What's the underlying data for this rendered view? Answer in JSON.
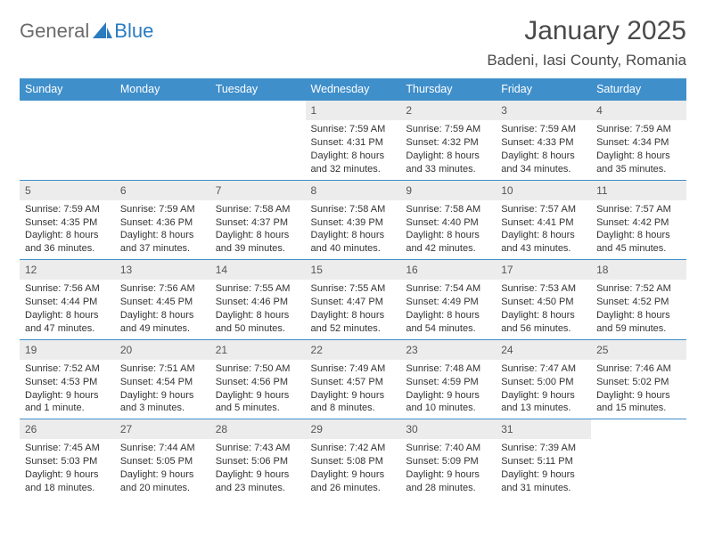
{
  "logo": {
    "general": "General",
    "blue": "Blue"
  },
  "title": "January 2025",
  "location": "Badeni, Iasi County, Romania",
  "colors": {
    "header_bg": "#3f8fcb",
    "header_text": "#ffffff",
    "daynum_bg": "#ececec",
    "row_border": "#3f8fcb",
    "logo_gray": "#6b6b6b",
    "logo_blue": "#2a7bbf"
  },
  "day_headers": [
    "Sunday",
    "Monday",
    "Tuesday",
    "Wednesday",
    "Thursday",
    "Friday",
    "Saturday"
  ],
  "weeks": [
    [
      {
        "n": "",
        "sr": "",
        "ss": "",
        "dl": ""
      },
      {
        "n": "",
        "sr": "",
        "ss": "",
        "dl": ""
      },
      {
        "n": "",
        "sr": "",
        "ss": "",
        "dl": ""
      },
      {
        "n": "1",
        "sr": "Sunrise: 7:59 AM",
        "ss": "Sunset: 4:31 PM",
        "dl": "Daylight: 8 hours and 32 minutes."
      },
      {
        "n": "2",
        "sr": "Sunrise: 7:59 AM",
        "ss": "Sunset: 4:32 PM",
        "dl": "Daylight: 8 hours and 33 minutes."
      },
      {
        "n": "3",
        "sr": "Sunrise: 7:59 AM",
        "ss": "Sunset: 4:33 PM",
        "dl": "Daylight: 8 hours and 34 minutes."
      },
      {
        "n": "4",
        "sr": "Sunrise: 7:59 AM",
        "ss": "Sunset: 4:34 PM",
        "dl": "Daylight: 8 hours and 35 minutes."
      }
    ],
    [
      {
        "n": "5",
        "sr": "Sunrise: 7:59 AM",
        "ss": "Sunset: 4:35 PM",
        "dl": "Daylight: 8 hours and 36 minutes."
      },
      {
        "n": "6",
        "sr": "Sunrise: 7:59 AM",
        "ss": "Sunset: 4:36 PM",
        "dl": "Daylight: 8 hours and 37 minutes."
      },
      {
        "n": "7",
        "sr": "Sunrise: 7:58 AM",
        "ss": "Sunset: 4:37 PM",
        "dl": "Daylight: 8 hours and 39 minutes."
      },
      {
        "n": "8",
        "sr": "Sunrise: 7:58 AM",
        "ss": "Sunset: 4:39 PM",
        "dl": "Daylight: 8 hours and 40 minutes."
      },
      {
        "n": "9",
        "sr": "Sunrise: 7:58 AM",
        "ss": "Sunset: 4:40 PM",
        "dl": "Daylight: 8 hours and 42 minutes."
      },
      {
        "n": "10",
        "sr": "Sunrise: 7:57 AM",
        "ss": "Sunset: 4:41 PM",
        "dl": "Daylight: 8 hours and 43 minutes."
      },
      {
        "n": "11",
        "sr": "Sunrise: 7:57 AM",
        "ss": "Sunset: 4:42 PM",
        "dl": "Daylight: 8 hours and 45 minutes."
      }
    ],
    [
      {
        "n": "12",
        "sr": "Sunrise: 7:56 AM",
        "ss": "Sunset: 4:44 PM",
        "dl": "Daylight: 8 hours and 47 minutes."
      },
      {
        "n": "13",
        "sr": "Sunrise: 7:56 AM",
        "ss": "Sunset: 4:45 PM",
        "dl": "Daylight: 8 hours and 49 minutes."
      },
      {
        "n": "14",
        "sr": "Sunrise: 7:55 AM",
        "ss": "Sunset: 4:46 PM",
        "dl": "Daylight: 8 hours and 50 minutes."
      },
      {
        "n": "15",
        "sr": "Sunrise: 7:55 AM",
        "ss": "Sunset: 4:47 PM",
        "dl": "Daylight: 8 hours and 52 minutes."
      },
      {
        "n": "16",
        "sr": "Sunrise: 7:54 AM",
        "ss": "Sunset: 4:49 PM",
        "dl": "Daylight: 8 hours and 54 minutes."
      },
      {
        "n": "17",
        "sr": "Sunrise: 7:53 AM",
        "ss": "Sunset: 4:50 PM",
        "dl": "Daylight: 8 hours and 56 minutes."
      },
      {
        "n": "18",
        "sr": "Sunrise: 7:52 AM",
        "ss": "Sunset: 4:52 PM",
        "dl": "Daylight: 8 hours and 59 minutes."
      }
    ],
    [
      {
        "n": "19",
        "sr": "Sunrise: 7:52 AM",
        "ss": "Sunset: 4:53 PM",
        "dl": "Daylight: 9 hours and 1 minute."
      },
      {
        "n": "20",
        "sr": "Sunrise: 7:51 AM",
        "ss": "Sunset: 4:54 PM",
        "dl": "Daylight: 9 hours and 3 minutes."
      },
      {
        "n": "21",
        "sr": "Sunrise: 7:50 AM",
        "ss": "Sunset: 4:56 PM",
        "dl": "Daylight: 9 hours and 5 minutes."
      },
      {
        "n": "22",
        "sr": "Sunrise: 7:49 AM",
        "ss": "Sunset: 4:57 PM",
        "dl": "Daylight: 9 hours and 8 minutes."
      },
      {
        "n": "23",
        "sr": "Sunrise: 7:48 AM",
        "ss": "Sunset: 4:59 PM",
        "dl": "Daylight: 9 hours and 10 minutes."
      },
      {
        "n": "24",
        "sr": "Sunrise: 7:47 AM",
        "ss": "Sunset: 5:00 PM",
        "dl": "Daylight: 9 hours and 13 minutes."
      },
      {
        "n": "25",
        "sr": "Sunrise: 7:46 AM",
        "ss": "Sunset: 5:02 PM",
        "dl": "Daylight: 9 hours and 15 minutes."
      }
    ],
    [
      {
        "n": "26",
        "sr": "Sunrise: 7:45 AM",
        "ss": "Sunset: 5:03 PM",
        "dl": "Daylight: 9 hours and 18 minutes."
      },
      {
        "n": "27",
        "sr": "Sunrise: 7:44 AM",
        "ss": "Sunset: 5:05 PM",
        "dl": "Daylight: 9 hours and 20 minutes."
      },
      {
        "n": "28",
        "sr": "Sunrise: 7:43 AM",
        "ss": "Sunset: 5:06 PM",
        "dl": "Daylight: 9 hours and 23 minutes."
      },
      {
        "n": "29",
        "sr": "Sunrise: 7:42 AM",
        "ss": "Sunset: 5:08 PM",
        "dl": "Daylight: 9 hours and 26 minutes."
      },
      {
        "n": "30",
        "sr": "Sunrise: 7:40 AM",
        "ss": "Sunset: 5:09 PM",
        "dl": "Daylight: 9 hours and 28 minutes."
      },
      {
        "n": "31",
        "sr": "Sunrise: 7:39 AM",
        "ss": "Sunset: 5:11 PM",
        "dl": "Daylight: 9 hours and 31 minutes."
      },
      {
        "n": "",
        "sr": "",
        "ss": "",
        "dl": ""
      }
    ]
  ]
}
